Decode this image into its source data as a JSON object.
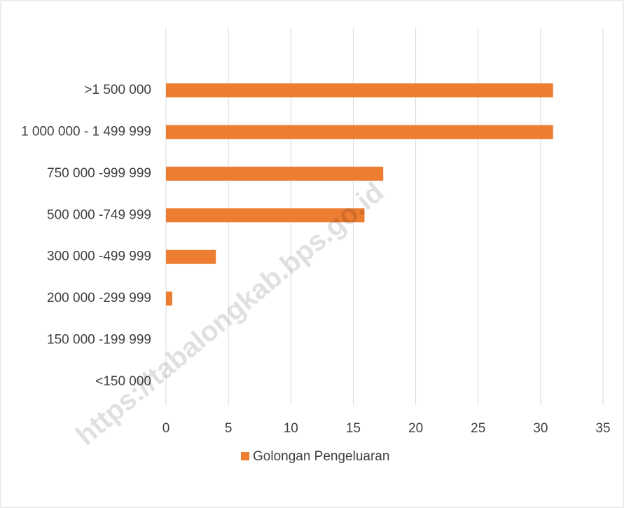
{
  "chart_data": {
    "type": "bar",
    "orientation": "horizontal",
    "categories": [
      "<150 000",
      "150 000 -199 999",
      "200 000 -299 999",
      "300 000 -499 999",
      "500 000 -749 999",
      "750 000 -999 999",
      "1 000 000 - 1 499 999",
      ">1 500 000"
    ],
    "series": [
      {
        "name": "Golongan Pengeluaran",
        "color": "#ed7d31",
        "values": [
          0,
          0,
          0.5,
          4,
          15.9,
          17.4,
          31,
          31
        ]
      }
    ],
    "xlim": [
      0,
      35
    ],
    "xticks": [
      0,
      5,
      10,
      15,
      20,
      25,
      30,
      35
    ],
    "grid": true,
    "legend": "bottom",
    "watermark": "https://tabalongkab.bps.go.id"
  }
}
